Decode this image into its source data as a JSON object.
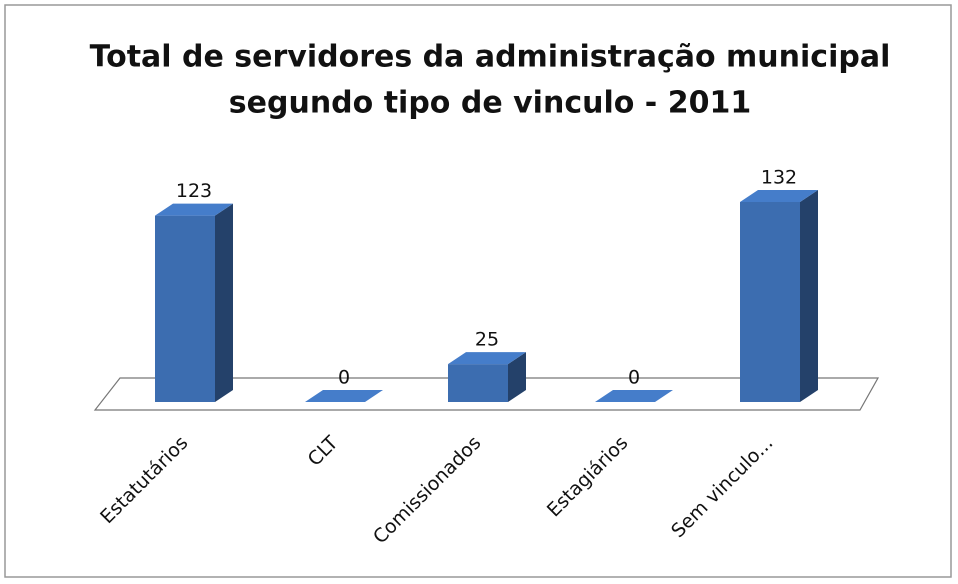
{
  "chart_data": {
    "type": "bar3d",
    "title": [
      "Total de servidores da administração municipal",
      "segundo tipo de vinculo - 2011"
    ],
    "categories": [
      "Estatutários",
      "CLT",
      "Comissionados",
      "Estagiários",
      "Sem vinculo..."
    ],
    "values": [
      123,
      0,
      25,
      0,
      132
    ],
    "color": "#3c6db0"
  }
}
